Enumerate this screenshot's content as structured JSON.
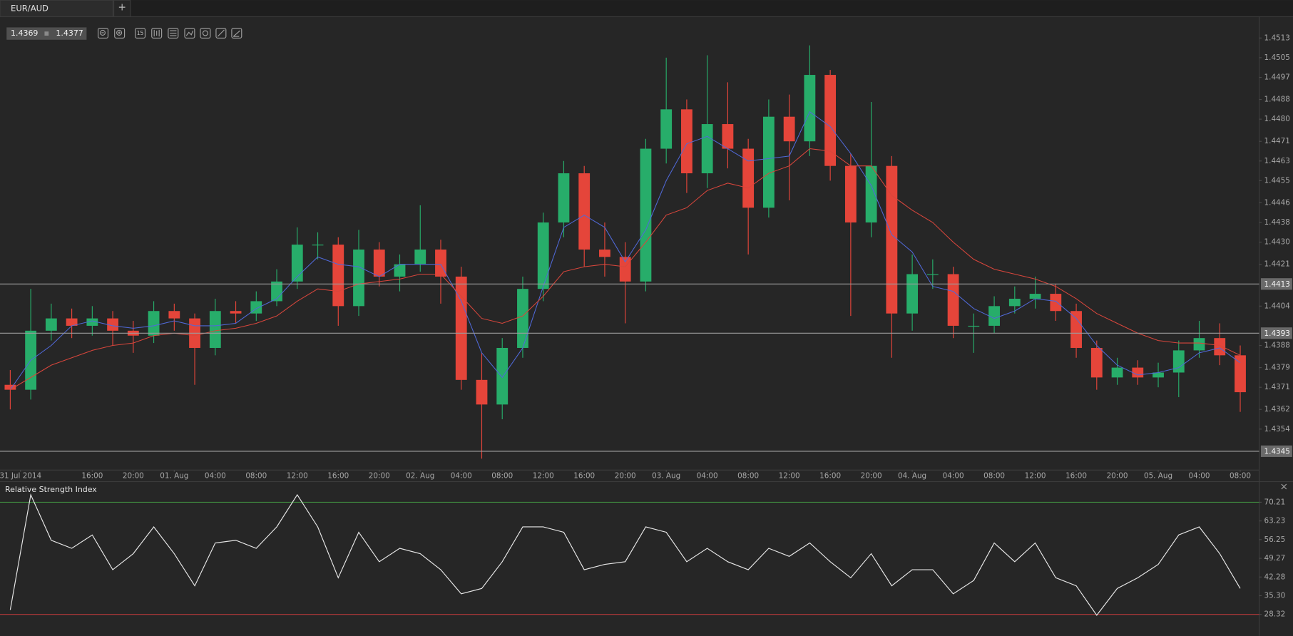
{
  "tab": {
    "title": "EUR/AUD",
    "new_tab": "+"
  },
  "quote": {
    "bid": 1.4369,
    "ask": 1.4377
  },
  "toolbar": {
    "timeframe": "15"
  },
  "chart_data": [
    {
      "type": "candlestick",
      "x": [
        8,
        10,
        12,
        14,
        16,
        18,
        20,
        22,
        24,
        26,
        28,
        30,
        32,
        34,
        36,
        38,
        40,
        42,
        44,
        46,
        48,
        50,
        52,
        54,
        56,
        58,
        60,
        62,
        64,
        66,
        68,
        70,
        72,
        74,
        76,
        78,
        80,
        82,
        84,
        86,
        88,
        90,
        92,
        94,
        96,
        98,
        100,
        102,
        104,
        106,
        108,
        110,
        112,
        114,
        116,
        118,
        120,
        122,
        124,
        126,
        128
      ],
      "open": [
        1.4372,
        1.437,
        1.4394,
        1.4399,
        1.4396,
        1.4399,
        1.4394,
        1.4392,
        1.4402,
        1.4399,
        1.4387,
        1.4402,
        1.4401,
        1.4406,
        1.4414,
        1.4429,
        1.4429,
        1.4404,
        1.4427,
        1.4416,
        1.4421,
        1.4427,
        1.4416,
        1.4374,
        1.4364,
        1.4387,
        1.4411,
        1.4438,
        1.4458,
        1.4427,
        1.4424,
        1.4414,
        1.4468,
        1.4484,
        1.4458,
        1.4478,
        1.4468,
        1.4444,
        1.4481,
        1.4471,
        1.4498,
        1.4461,
        1.4438,
        1.4461,
        1.4401,
        1.4417,
        1.4417,
        1.4396,
        1.4396,
        1.4404,
        1.4407,
        1.4409,
        1.4402,
        1.4387,
        1.4375,
        1.4379,
        1.4375,
        1.4377,
        1.4386,
        1.4391,
        1.4384
      ],
      "high": [
        1.4378,
        1.4411,
        1.4405,
        1.4403,
        1.4404,
        1.4402,
        1.4398,
        1.4406,
        1.4405,
        1.4401,
        1.4407,
        1.4406,
        1.441,
        1.4419,
        1.4436,
        1.4434,
        1.4432,
        1.4435,
        1.443,
        1.4425,
        1.4445,
        1.4431,
        1.442,
        1.4385,
        1.4391,
        1.4416,
        1.4442,
        1.4463,
        1.4461,
        1.4438,
        1.443,
        1.4472,
        1.4505,
        1.4488,
        1.4506,
        1.4495,
        1.4472,
        1.4488,
        1.449,
        1.451,
        1.45,
        1.4466,
        1.4487,
        1.4465,
        1.4425,
        1.4423,
        1.442,
        1.4401,
        1.4408,
        1.4412,
        1.4416,
        1.4413,
        1.4405,
        1.439,
        1.4383,
        1.4382,
        1.4381,
        1.439,
        1.4398,
        1.4397,
        1.4388
      ],
      "low": [
        1.4362,
        1.4366,
        1.439,
        1.4391,
        1.4392,
        1.4388,
        1.4385,
        1.4389,
        1.4394,
        1.4372,
        1.4384,
        1.4397,
        1.4398,
        1.4404,
        1.4411,
        1.4423,
        1.4396,
        1.44,
        1.4412,
        1.441,
        1.4418,
        1.4405,
        1.437,
        1.4342,
        1.4358,
        1.4383,
        1.4406,
        1.4432,
        1.442,
        1.4416,
        1.4397,
        1.441,
        1.4462,
        1.445,
        1.4452,
        1.446,
        1.4425,
        1.444,
        1.4447,
        1.4465,
        1.4455,
        1.44,
        1.4432,
        1.4383,
        1.4394,
        1.4411,
        1.4391,
        1.4385,
        1.4393,
        1.4401,
        1.4403,
        1.4398,
        1.4383,
        1.437,
        1.4372,
        1.4372,
        1.4371,
        1.4367,
        1.4383,
        1.438,
        1.4361
      ],
      "close": [
        1.437,
        1.4394,
        1.4399,
        1.4396,
        1.4399,
        1.4394,
        1.4392,
        1.4402,
        1.4399,
        1.4387,
        1.4402,
        1.4401,
        1.4406,
        1.4414,
        1.4429,
        1.4429,
        1.4404,
        1.4427,
        1.4416,
        1.4421,
        1.4427,
        1.4416,
        1.4374,
        1.4364,
        1.4387,
        1.4411,
        1.4438,
        1.4458,
        1.4427,
        1.4424,
        1.4414,
        1.4468,
        1.4484,
        1.4458,
        1.4478,
        1.4468,
        1.4444,
        1.4481,
        1.4471,
        1.4498,
        1.4461,
        1.4438,
        1.4461,
        1.4401,
        1.4417,
        1.4417,
        1.4396,
        1.4396,
        1.4404,
        1.4407,
        1.4409,
        1.4402,
        1.4387,
        1.4375,
        1.4379,
        1.4375,
        1.4377,
        1.4386,
        1.4391,
        1.4384,
        1.4369
      ],
      "up_color": "#27ad6a",
      "down_color": "#e5453a",
      "series": [
        {
          "color": "#5069d8",
          "values": [
            1.437,
            1.4382,
            1.4388,
            1.4396,
            1.4398,
            1.4396,
            1.4395,
            1.4396,
            1.4398,
            1.4396,
            1.4396,
            1.4397,
            1.4403,
            1.4407,
            1.4416,
            1.4424,
            1.4421,
            1.442,
            1.4416,
            1.4421,
            1.4421,
            1.4421,
            1.4406,
            1.4385,
            1.4375,
            1.4387,
            1.4412,
            1.4436,
            1.4441,
            1.4436,
            1.4422,
            1.4435,
            1.4455,
            1.447,
            1.4473,
            1.4468,
            1.4463,
            1.4464,
            1.4465,
            1.4483,
            1.4477,
            1.4466,
            1.4453,
            1.4433,
            1.4426,
            1.4412,
            1.441,
            1.4403,
            1.4399,
            1.4402,
            1.4407,
            1.4406,
            1.4399,
            1.4388,
            1.438,
            1.4376,
            1.4377,
            1.4379,
            1.4385,
            1.4387,
            1.4381
          ]
        },
        {
          "color": "#d8463c",
          "values": [
            1.437,
            1.4375,
            1.438,
            1.4383,
            1.4386,
            1.4388,
            1.4389,
            1.4392,
            1.4393,
            1.4392,
            1.4394,
            1.4395,
            1.4397,
            1.44,
            1.4406,
            1.4411,
            1.441,
            1.4413,
            1.4414,
            1.4415,
            1.4417,
            1.4417,
            1.4408,
            1.4399,
            1.4397,
            1.44,
            1.4408,
            1.4418,
            1.442,
            1.4421,
            1.442,
            1.443,
            1.4441,
            1.4444,
            1.4451,
            1.4454,
            1.4452,
            1.4458,
            1.4461,
            1.4468,
            1.4467,
            1.4461,
            1.4461,
            1.4449,
            1.4443,
            1.4438,
            1.443,
            1.4423,
            1.4419,
            1.4417,
            1.4415,
            1.4412,
            1.4407,
            1.4401,
            1.4397,
            1.4393,
            1.439,
            1.4389,
            1.4389,
            1.4388,
            1.4384
          ]
        }
      ],
      "hlines": [
        1.4413,
        1.4393,
        1.4345
      ],
      "xlim": [
        7,
        129.85
      ],
      "ylim": [
        1.4338,
        1.4521
      ],
      "xticks": [
        {
          "value": 9,
          "label": "31 Jul 2014"
        },
        {
          "value": 16,
          "label": "16:00"
        },
        {
          "value": 20,
          "label": "20:00"
        },
        {
          "value": 24,
          "label": "01. Aug"
        },
        {
          "value": 28,
          "label": "04:00"
        },
        {
          "value": 32,
          "label": "08:00"
        },
        {
          "value": 36,
          "label": "12:00"
        },
        {
          "value": 40,
          "label": "16:00"
        },
        {
          "value": 44,
          "label": "20:00"
        },
        {
          "value": 48,
          "label": "02. Aug"
        },
        {
          "value": 52,
          "label": "04:00"
        },
        {
          "value": 56,
          "label": "08:00"
        },
        {
          "value": 60,
          "label": "12:00"
        },
        {
          "value": 64,
          "label": "16:00"
        },
        {
          "value": 68,
          "label": "20:00"
        },
        {
          "value": 72,
          "label": "03. Aug"
        },
        {
          "value": 76,
          "label": "04:00"
        },
        {
          "value": 80,
          "label": "08:00"
        },
        {
          "value": 84,
          "label": "12:00"
        },
        {
          "value": 88,
          "label": "16:00"
        },
        {
          "value": 92,
          "label": "20:00"
        },
        {
          "value": 96,
          "label": "04. Aug"
        },
        {
          "value": 100,
          "label": "04:00"
        },
        {
          "value": 104,
          "label": "08:00"
        },
        {
          "value": 108,
          "label": "12:00"
        },
        {
          "value": 112,
          "label": "16:00"
        },
        {
          "value": 116,
          "label": "20:00"
        },
        {
          "value": 120,
          "label": "05. Aug"
        },
        {
          "value": 124,
          "label": "04:00"
        },
        {
          "value": 128,
          "label": "08:00"
        }
      ],
      "yticks": [
        1.4513,
        1.4505,
        1.4497,
        1.4488,
        {
          "value": 1.448,
          "label": "1.4480"
        },
        1.4471,
        1.4463,
        1.4455,
        1.4446,
        1.4438,
        {
          "value": 1.443,
          "label": "1.4430"
        },
        1.4421,
        1.4404,
        1.4388,
        1.4379,
        1.4371,
        1.4362,
        1.4354
      ]
    },
    {
      "type": "line",
      "title": "Relative Strength Index",
      "x": [
        8,
        10,
        12,
        14,
        16,
        18,
        20,
        22,
        24,
        26,
        28,
        30,
        32,
        34,
        36,
        38,
        40,
        42,
        44,
        46,
        48,
        50,
        52,
        54,
        56,
        58,
        60,
        62,
        64,
        66,
        68,
        70,
        72,
        74,
        76,
        78,
        80,
        82,
        84,
        86,
        88,
        90,
        92,
        94,
        96,
        98,
        100,
        102,
        104,
        106,
        108,
        110,
        112,
        114,
        116,
        118,
        120,
        122,
        124,
        126,
        128
      ],
      "series": [
        {
          "color": "#e8e8e8",
          "values": [
            30,
            73,
            56,
            53,
            58,
            45,
            51,
            61,
            51,
            39,
            55,
            56,
            53,
            61,
            73,
            61,
            42,
            59,
            48,
            53,
            51,
            45,
            36,
            38,
            48,
            61,
            61,
            59,
            45,
            47,
            48,
            61,
            59,
            48,
            53,
            48,
            45,
            53,
            50,
            55,
            48,
            42,
            51,
            39,
            45,
            45,
            36,
            41,
            55,
            48,
            55,
            42,
            39,
            28,
            38,
            42,
            47,
            58,
            61,
            51,
            38
          ]
        }
      ],
      "levels": [
        {
          "value": 70.21,
          "color": "#3f8a3f"
        },
        {
          "value": 28.32,
          "color": "#b8383a"
        }
      ],
      "xlim": [
        7,
        129.85
      ],
      "ylim": [
        20.32,
        76.98
      ],
      "yticks": [
        70.21,
        63.23,
        56.25,
        49.27,
        42.28,
        {
          "value": 35.3,
          "label": "35.30"
        },
        28.32
      ]
    }
  ]
}
